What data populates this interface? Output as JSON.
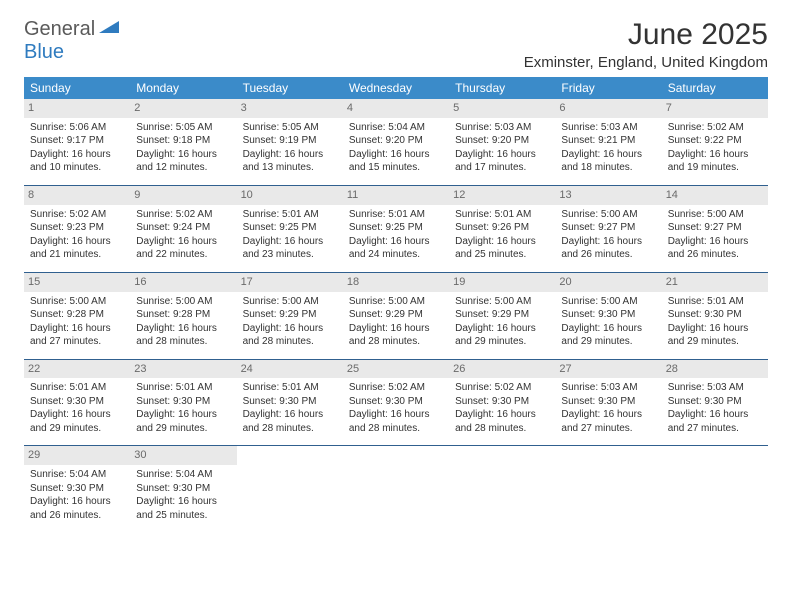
{
  "logo": {
    "word1": "General",
    "word2": "Blue",
    "accent_color": "#2f7bbf",
    "text_color": "#5a5a5a"
  },
  "title": "June 2025",
  "location": "Exminster, England, United Kingdom",
  "header_bg": "#3b8bc9",
  "daynum_bg": "#e9e9e9",
  "sep_color": "#30608f",
  "weekdays": [
    "Sunday",
    "Monday",
    "Tuesday",
    "Wednesday",
    "Thursday",
    "Friday",
    "Saturday"
  ],
  "weeks": [
    [
      {
        "d": "1",
        "sr": "Sunrise: 5:06 AM",
        "ss": "Sunset: 9:17 PM",
        "dl1": "Daylight: 16 hours",
        "dl2": "and 10 minutes."
      },
      {
        "d": "2",
        "sr": "Sunrise: 5:05 AM",
        "ss": "Sunset: 9:18 PM",
        "dl1": "Daylight: 16 hours",
        "dl2": "and 12 minutes."
      },
      {
        "d": "3",
        "sr": "Sunrise: 5:05 AM",
        "ss": "Sunset: 9:19 PM",
        "dl1": "Daylight: 16 hours",
        "dl2": "and 13 minutes."
      },
      {
        "d": "4",
        "sr": "Sunrise: 5:04 AM",
        "ss": "Sunset: 9:20 PM",
        "dl1": "Daylight: 16 hours",
        "dl2": "and 15 minutes."
      },
      {
        "d": "5",
        "sr": "Sunrise: 5:03 AM",
        "ss": "Sunset: 9:20 PM",
        "dl1": "Daylight: 16 hours",
        "dl2": "and 17 minutes."
      },
      {
        "d": "6",
        "sr": "Sunrise: 5:03 AM",
        "ss": "Sunset: 9:21 PM",
        "dl1": "Daylight: 16 hours",
        "dl2": "and 18 minutes."
      },
      {
        "d": "7",
        "sr": "Sunrise: 5:02 AM",
        "ss": "Sunset: 9:22 PM",
        "dl1": "Daylight: 16 hours",
        "dl2": "and 19 minutes."
      }
    ],
    [
      {
        "d": "8",
        "sr": "Sunrise: 5:02 AM",
        "ss": "Sunset: 9:23 PM",
        "dl1": "Daylight: 16 hours",
        "dl2": "and 21 minutes."
      },
      {
        "d": "9",
        "sr": "Sunrise: 5:02 AM",
        "ss": "Sunset: 9:24 PM",
        "dl1": "Daylight: 16 hours",
        "dl2": "and 22 minutes."
      },
      {
        "d": "10",
        "sr": "Sunrise: 5:01 AM",
        "ss": "Sunset: 9:25 PM",
        "dl1": "Daylight: 16 hours",
        "dl2": "and 23 minutes."
      },
      {
        "d": "11",
        "sr": "Sunrise: 5:01 AM",
        "ss": "Sunset: 9:25 PM",
        "dl1": "Daylight: 16 hours",
        "dl2": "and 24 minutes."
      },
      {
        "d": "12",
        "sr": "Sunrise: 5:01 AM",
        "ss": "Sunset: 9:26 PM",
        "dl1": "Daylight: 16 hours",
        "dl2": "and 25 minutes."
      },
      {
        "d": "13",
        "sr": "Sunrise: 5:00 AM",
        "ss": "Sunset: 9:27 PM",
        "dl1": "Daylight: 16 hours",
        "dl2": "and 26 minutes."
      },
      {
        "d": "14",
        "sr": "Sunrise: 5:00 AM",
        "ss": "Sunset: 9:27 PM",
        "dl1": "Daylight: 16 hours",
        "dl2": "and 26 minutes."
      }
    ],
    [
      {
        "d": "15",
        "sr": "Sunrise: 5:00 AM",
        "ss": "Sunset: 9:28 PM",
        "dl1": "Daylight: 16 hours",
        "dl2": "and 27 minutes."
      },
      {
        "d": "16",
        "sr": "Sunrise: 5:00 AM",
        "ss": "Sunset: 9:28 PM",
        "dl1": "Daylight: 16 hours",
        "dl2": "and 28 minutes."
      },
      {
        "d": "17",
        "sr": "Sunrise: 5:00 AM",
        "ss": "Sunset: 9:29 PM",
        "dl1": "Daylight: 16 hours",
        "dl2": "and 28 minutes."
      },
      {
        "d": "18",
        "sr": "Sunrise: 5:00 AM",
        "ss": "Sunset: 9:29 PM",
        "dl1": "Daylight: 16 hours",
        "dl2": "and 28 minutes."
      },
      {
        "d": "19",
        "sr": "Sunrise: 5:00 AM",
        "ss": "Sunset: 9:29 PM",
        "dl1": "Daylight: 16 hours",
        "dl2": "and 29 minutes."
      },
      {
        "d": "20",
        "sr": "Sunrise: 5:00 AM",
        "ss": "Sunset: 9:30 PM",
        "dl1": "Daylight: 16 hours",
        "dl2": "and 29 minutes."
      },
      {
        "d": "21",
        "sr": "Sunrise: 5:01 AM",
        "ss": "Sunset: 9:30 PM",
        "dl1": "Daylight: 16 hours",
        "dl2": "and 29 minutes."
      }
    ],
    [
      {
        "d": "22",
        "sr": "Sunrise: 5:01 AM",
        "ss": "Sunset: 9:30 PM",
        "dl1": "Daylight: 16 hours",
        "dl2": "and 29 minutes."
      },
      {
        "d": "23",
        "sr": "Sunrise: 5:01 AM",
        "ss": "Sunset: 9:30 PM",
        "dl1": "Daylight: 16 hours",
        "dl2": "and 29 minutes."
      },
      {
        "d": "24",
        "sr": "Sunrise: 5:01 AM",
        "ss": "Sunset: 9:30 PM",
        "dl1": "Daylight: 16 hours",
        "dl2": "and 28 minutes."
      },
      {
        "d": "25",
        "sr": "Sunrise: 5:02 AM",
        "ss": "Sunset: 9:30 PM",
        "dl1": "Daylight: 16 hours",
        "dl2": "and 28 minutes."
      },
      {
        "d": "26",
        "sr": "Sunrise: 5:02 AM",
        "ss": "Sunset: 9:30 PM",
        "dl1": "Daylight: 16 hours",
        "dl2": "and 28 minutes."
      },
      {
        "d": "27",
        "sr": "Sunrise: 5:03 AM",
        "ss": "Sunset: 9:30 PM",
        "dl1": "Daylight: 16 hours",
        "dl2": "and 27 minutes."
      },
      {
        "d": "28",
        "sr": "Sunrise: 5:03 AM",
        "ss": "Sunset: 9:30 PM",
        "dl1": "Daylight: 16 hours",
        "dl2": "and 27 minutes."
      }
    ],
    [
      {
        "d": "29",
        "sr": "Sunrise: 5:04 AM",
        "ss": "Sunset: 9:30 PM",
        "dl1": "Daylight: 16 hours",
        "dl2": "and 26 minutes."
      },
      {
        "d": "30",
        "sr": "Sunrise: 5:04 AM",
        "ss": "Sunset: 9:30 PM",
        "dl1": "Daylight: 16 hours",
        "dl2": "and 25 minutes."
      },
      null,
      null,
      null,
      null,
      null
    ]
  ]
}
